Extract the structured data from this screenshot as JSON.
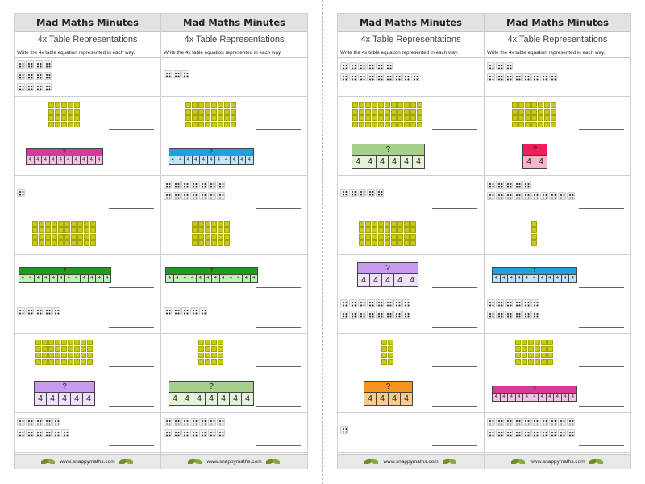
{
  "sheet": {
    "title": "Mad Maths Minutes",
    "subtitle": "4x Table Representations",
    "instruction": "Write the 4x table equation represented in each way.",
    "footer": "www.snappymaths.com"
  },
  "colors": {
    "magenta_top": "#d63a98",
    "magenta_cell": "#f5c2e4",
    "blue_top": "#1ea3d8",
    "blue_cell": "#bfe6f6",
    "green_top": "#1c9e1c",
    "green_cell": "#bff0bf",
    "violet_top": "#c89af0",
    "violet_cell": "#efe0fc",
    "sage_top": "#a6d08a",
    "sage_cell": "#e3f2d8",
    "red_top": "#ee1e5a",
    "red_cell": "#f9b6c9",
    "orange_top": "#f7941d",
    "orange_cell": "#fbc98a",
    "block": "#c9c91a"
  },
  "columns": [
    {
      "items": [
        {
          "kind": "dots",
          "groups": [
            4,
            4,
            4
          ]
        },
        {
          "kind": "blocks",
          "groups": 5
        },
        {
          "kind": "bar",
          "top": "?",
          "cell": "4",
          "count": 10,
          "color": "magenta"
        },
        {
          "kind": "dots",
          "groups": [
            1
          ]
        },
        {
          "kind": "blocks",
          "groups": 10
        },
        {
          "kind": "bar",
          "top": "?",
          "cell": "4",
          "count": 12,
          "color": "green"
        },
        {
          "kind": "dots",
          "groups": [
            5
          ]
        },
        {
          "kind": "blocks",
          "groups": 9
        },
        {
          "kind": "bar",
          "top": "?",
          "cell": "4",
          "count": 5,
          "color": "violet"
        },
        {
          "kind": "dots",
          "groups": [
            5,
            6
          ]
        }
      ]
    },
    {
      "items": [
        {
          "kind": "dots",
          "groups": [
            3
          ]
        },
        {
          "kind": "blocks",
          "groups": 8
        },
        {
          "kind": "bar",
          "top": "?",
          "cell": "4",
          "count": 11,
          "color": "blue"
        },
        {
          "kind": "dots",
          "groups": [
            7,
            7
          ]
        },
        {
          "kind": "blocks",
          "groups": 6
        },
        {
          "kind": "bar",
          "top": "?",
          "cell": "4",
          "count": 12,
          "color": "green"
        },
        {
          "kind": "dots",
          "groups": [
            5
          ]
        },
        {
          "kind": "blocks",
          "groups": 4
        },
        {
          "kind": "bar",
          "top": "?",
          "cell": "4",
          "count": 7,
          "color": "sage"
        },
        {
          "kind": "dots",
          "groups": [
            7,
            7
          ]
        }
      ]
    },
    {
      "items": [
        {
          "kind": "dots",
          "groups": [
            6,
            9
          ]
        },
        {
          "kind": "blocks",
          "groups": 11
        },
        {
          "kind": "bar",
          "top": "?",
          "cell": "4",
          "count": 6,
          "color": "sage"
        },
        {
          "kind": "dots",
          "groups": [
            5
          ]
        },
        {
          "kind": "blocks",
          "groups": 9
        },
        {
          "kind": "bar",
          "top": "?",
          "cell": "4",
          "count": 5,
          "color": "violet"
        },
        {
          "kind": "dots",
          "groups": [
            8,
            8
          ]
        },
        {
          "kind": "blocks",
          "groups": 2
        },
        {
          "kind": "bar",
          "top": "?",
          "cell": "4",
          "count": 4,
          "color": "orange"
        },
        {
          "kind": "dots",
          "groups": [
            1
          ]
        }
      ]
    },
    {
      "items": [
        {
          "kind": "dots",
          "groups": [
            3,
            8
          ]
        },
        {
          "kind": "blocks",
          "groups": 7
        },
        {
          "kind": "bar",
          "top": "?",
          "cell": "4",
          "count": 2,
          "color": "red"
        },
        {
          "kind": "dots",
          "groups": [
            5,
            10
          ]
        },
        {
          "kind": "blocks",
          "groups": 1
        },
        {
          "kind": "bar",
          "top": "?",
          "cell": "4",
          "count": 11,
          "color": "blue"
        },
        {
          "kind": "dots",
          "groups": [
            6,
            6
          ]
        },
        {
          "kind": "blocks",
          "groups": 6
        },
        {
          "kind": "bar",
          "top": "?",
          "cell": "4",
          "count": 11,
          "color": "magenta"
        },
        {
          "kind": "dots",
          "groups": [
            10,
            10
          ]
        }
      ]
    }
  ]
}
